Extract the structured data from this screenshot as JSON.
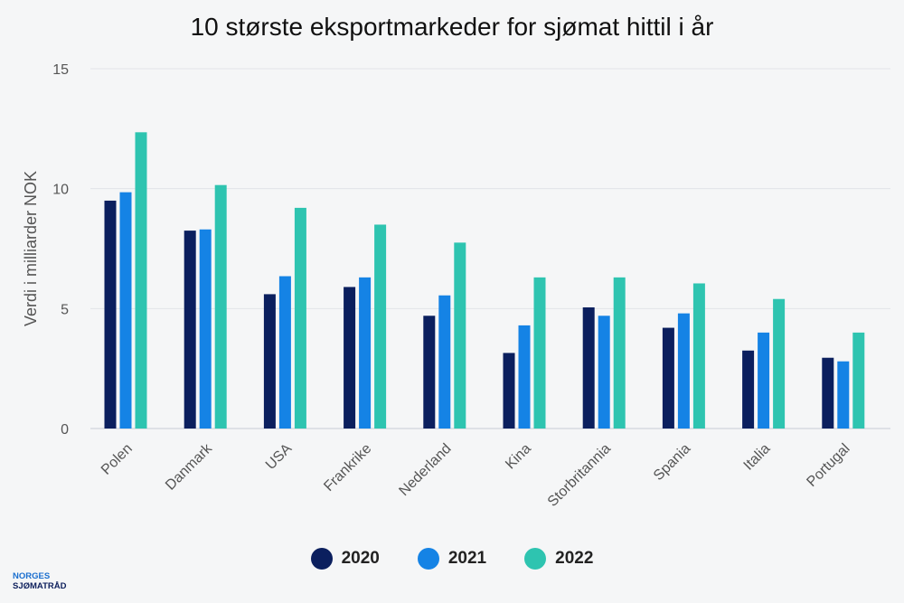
{
  "chart_data": {
    "type": "bar",
    "title": "10 største eksportmarkeder for sjømat hittil i år",
    "xlabel": "",
    "ylabel": "Verdi i milliarder NOK",
    "ylim": [
      0,
      15
    ],
    "yticks": [
      0,
      5,
      10,
      15
    ],
    "grid": true,
    "legend_position": "bottom",
    "categories": [
      "Polen",
      "Danmark",
      "USA",
      "Frankrike",
      "Nederland",
      "Kina",
      "Storbritannia",
      "Spania",
      "Italia",
      "Portugal"
    ],
    "series": [
      {
        "name": "2020",
        "color": "#0b1f5e",
        "values": [
          9.5,
          8.25,
          5.6,
          5.9,
          4.7,
          3.15,
          5.05,
          4.2,
          3.25,
          2.95
        ]
      },
      {
        "name": "2021",
        "color": "#1583e5",
        "values": [
          9.85,
          8.3,
          6.35,
          6.3,
          5.55,
          4.3,
          4.7,
          4.8,
          4.0,
          2.8
        ]
      },
      {
        "name": "2022",
        "color": "#2ec4b0",
        "values": [
          12.35,
          10.15,
          9.2,
          8.5,
          7.75,
          6.3,
          6.3,
          6.05,
          5.4,
          4.0
        ]
      }
    ]
  },
  "branding": {
    "line1": "NORGES",
    "line2": "SJØMATRÅD"
  }
}
